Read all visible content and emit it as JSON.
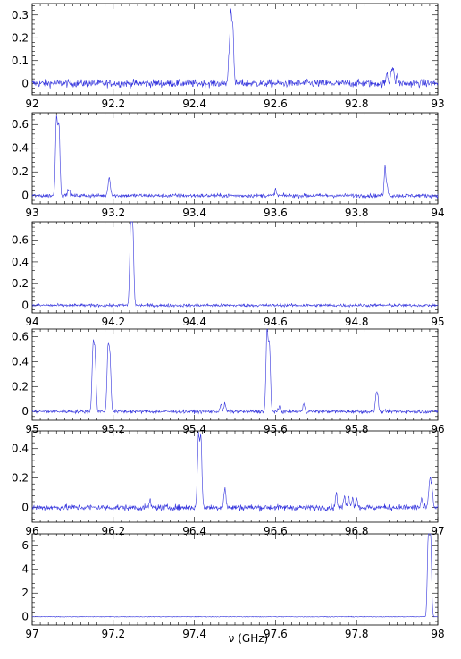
{
  "figure": {
    "xlabel": "ν (GHz)",
    "line_color": "#3333dd",
    "frame_color": "#000000"
  },
  "chart_data": [
    {
      "type": "line",
      "x_range": [
        92,
        93
      ],
      "ylim": [
        -0.05,
        0.35
      ],
      "x_ticks": [
        92,
        92.2,
        92.4,
        92.6,
        92.8,
        93
      ],
      "x_tick_labels": [
        "92",
        "92.2",
        "92.4",
        "92.6",
        "92.8",
        "93"
      ],
      "y_ticks": [
        0,
        0.1,
        0.2,
        0.3
      ],
      "y_tick_labels": [
        "0",
        "0.1",
        "0.2",
        "0.3"
      ],
      "noise": 0.012,
      "peaks": [
        {
          "x": 92.49,
          "y": 0.31,
          "w": 0.0025
        },
        {
          "x": 92.495,
          "y": 0.22,
          "w": 0.002
        },
        {
          "x": 92.485,
          "y": 0.09,
          "w": 0.002
        },
        {
          "x": 92.875,
          "y": 0.05,
          "w": 0.002
        },
        {
          "x": 92.885,
          "y": 0.06,
          "w": 0.002
        },
        {
          "x": 92.89,
          "y": 0.07,
          "w": 0.002
        },
        {
          "x": 92.9,
          "y": 0.04,
          "w": 0.002
        }
      ]
    },
    {
      "type": "line",
      "x_range": [
        93,
        94
      ],
      "ylim": [
        -0.07,
        0.7
      ],
      "x_ticks": [
        93,
        93.2,
        93.4,
        93.6,
        93.8,
        94
      ],
      "x_tick_labels": [
        "93",
        "93.2",
        "93.4",
        "93.6",
        "93.8",
        "94"
      ],
      "y_ticks": [
        0,
        0.2,
        0.4,
        0.6
      ],
      "y_tick_labels": [
        "0",
        "0.2",
        "0.4",
        "0.6"
      ],
      "noise": 0.012,
      "peaks": [
        {
          "x": 93.06,
          "y": 0.65,
          "w": 0.0025
        },
        {
          "x": 93.066,
          "y": 0.58,
          "w": 0.0025
        },
        {
          "x": 93.09,
          "y": 0.05,
          "w": 0.003
        },
        {
          "x": 93.19,
          "y": 0.15,
          "w": 0.003
        },
        {
          "x": 93.6,
          "y": 0.05,
          "w": 0.002
        },
        {
          "x": 93.87,
          "y": 0.24,
          "w": 0.002
        },
        {
          "x": 93.875,
          "y": 0.1,
          "w": 0.002
        }
      ]
    },
    {
      "type": "line",
      "x_range": [
        94,
        95
      ],
      "ylim": [
        -0.07,
        0.77
      ],
      "x_ticks": [
        94,
        94.2,
        94.4,
        94.6,
        94.8,
        95
      ],
      "x_tick_labels": [
        "94",
        "94.2",
        "94.4",
        "94.6",
        "94.8",
        "95"
      ],
      "y_ticks": [
        0,
        0.2,
        0.4,
        0.6
      ],
      "y_tick_labels": [
        "0",
        "0.2",
        "0.4",
        "0.6"
      ],
      "noise": 0.01,
      "peaks": [
        {
          "x": 94.243,
          "y": 0.72,
          "w": 0.0025
        },
        {
          "x": 94.248,
          "y": 0.68,
          "w": 0.0025
        }
      ]
    },
    {
      "type": "line",
      "x_range": [
        95,
        96
      ],
      "ylim": [
        -0.07,
        0.66
      ],
      "x_ticks": [
        95,
        95.2,
        95.4,
        95.6,
        95.8,
        96
      ],
      "x_tick_labels": [
        "95",
        "95.2",
        "95.4",
        "95.6",
        "95.8",
        "96"
      ],
      "y_ticks": [
        0,
        0.2,
        0.4,
        0.6
      ],
      "y_tick_labels": [
        "0",
        "0.2",
        "0.4",
        "0.6"
      ],
      "noise": 0.01,
      "peaks": [
        {
          "x": 95.15,
          "y": 0.49,
          "w": 0.0025
        },
        {
          "x": 95.155,
          "y": 0.43,
          "w": 0.0025
        },
        {
          "x": 95.187,
          "y": 0.48,
          "w": 0.0025
        },
        {
          "x": 95.192,
          "y": 0.4,
          "w": 0.0025
        },
        {
          "x": 95.465,
          "y": 0.06,
          "w": 0.002
        },
        {
          "x": 95.475,
          "y": 0.07,
          "w": 0.002
        },
        {
          "x": 95.579,
          "y": 0.64,
          "w": 0.0025
        },
        {
          "x": 95.585,
          "y": 0.52,
          "w": 0.0025
        },
        {
          "x": 95.61,
          "y": 0.04,
          "w": 0.002
        },
        {
          "x": 95.67,
          "y": 0.07,
          "w": 0.002
        },
        {
          "x": 95.848,
          "y": 0.13,
          "w": 0.002
        },
        {
          "x": 95.852,
          "y": 0.12,
          "w": 0.002
        }
      ]
    },
    {
      "type": "line",
      "x_range": [
        96,
        97
      ],
      "ylim": [
        -0.1,
        0.52
      ],
      "x_ticks": [
        96,
        96.2,
        96.4,
        96.6,
        96.8,
        97
      ],
      "x_tick_labels": [
        "96",
        "96.2",
        "96.4",
        "96.6",
        "96.8",
        "97"
      ],
      "y_ticks": [
        0,
        0.2,
        0.4
      ],
      "y_tick_labels": [
        "0",
        "0.2",
        "0.4"
      ],
      "noise": 0.015,
      "peaks": [
        {
          "x": 96.29,
          "y": 0.05,
          "w": 0.002
        },
        {
          "x": 96.41,
          "y": 0.48,
          "w": 0.0025
        },
        {
          "x": 96.416,
          "y": 0.46,
          "w": 0.0025
        },
        {
          "x": 96.475,
          "y": 0.13,
          "w": 0.0025
        },
        {
          "x": 96.75,
          "y": 0.11,
          "w": 0.002
        },
        {
          "x": 96.77,
          "y": 0.08,
          "w": 0.002
        },
        {
          "x": 96.78,
          "y": 0.09,
          "w": 0.002
        },
        {
          "x": 96.79,
          "y": 0.08,
          "w": 0.002
        },
        {
          "x": 96.8,
          "y": 0.07,
          "w": 0.002
        },
        {
          "x": 96.96,
          "y": 0.06,
          "w": 0.002
        },
        {
          "x": 96.98,
          "y": 0.17,
          "w": 0.0025
        },
        {
          "x": 96.985,
          "y": 0.14,
          "w": 0.0025
        }
      ]
    },
    {
      "type": "line",
      "x_range": [
        97,
        98
      ],
      "ylim": [
        -0.7,
        7.0
      ],
      "x_ticks": [
        97,
        97.2,
        97.4,
        97.6,
        97.8,
        98
      ],
      "x_tick_labels": [
        "97",
        "97.2",
        "97.4",
        "97.6",
        "97.8",
        "98"
      ],
      "y_ticks": [
        0,
        2,
        4,
        6
      ],
      "y_tick_labels": [
        "0",
        "2",
        "4",
        "6"
      ],
      "noise": 0.02,
      "peaks": [
        {
          "x": 97.978,
          "y": 6.6,
          "w": 0.0025
        },
        {
          "x": 97.982,
          "y": 6.4,
          "w": 0.0025
        },
        {
          "x": 97.975,
          "y": 2.0,
          "w": 0.002
        }
      ]
    }
  ]
}
